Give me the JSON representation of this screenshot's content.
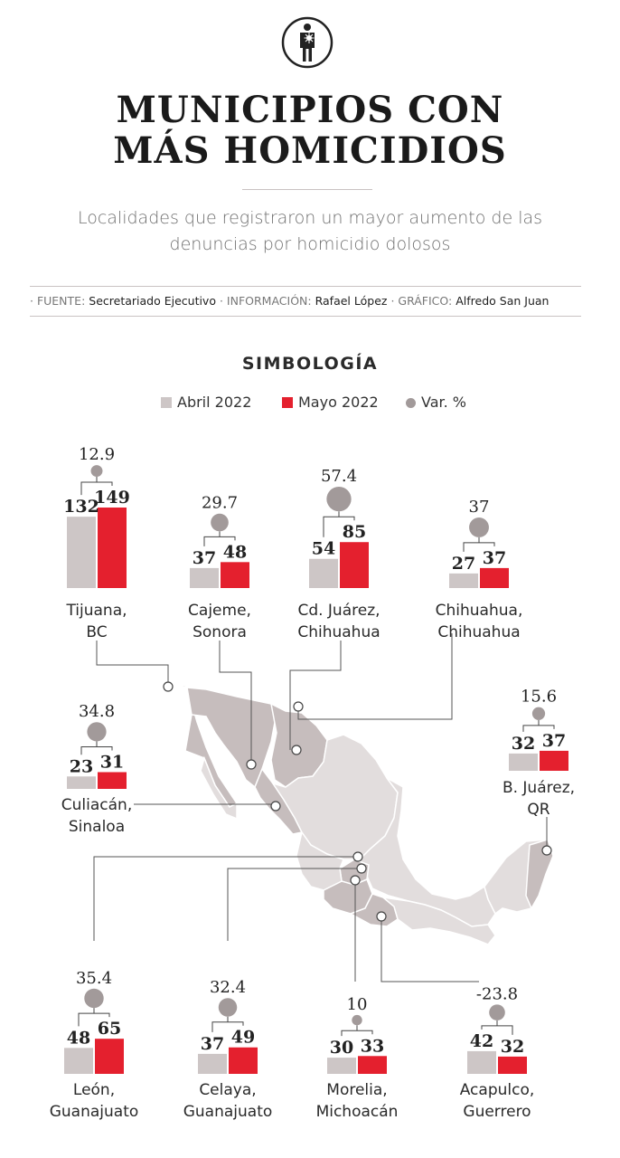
{
  "header": {
    "logo_icon": "person-with-wound-icon",
    "title_line1": "MUNICIPIOS CON",
    "title_line2": "MÁS HOMICIDIOS",
    "subtitle_line1": "Localidades que registraron un mayor aumento de las",
    "subtitle_line2": "denuncias por homicidio dolosos"
  },
  "credits": {
    "fuente_label": "· FUENTE:",
    "fuente_value": "Secretariado Ejecutivo",
    "informacion_label": "· INFORMACIÓN:",
    "informacion_value": "Rafael López",
    "grafico_label": "· GRÁFICO:",
    "grafico_value": "Alfredo San Juan"
  },
  "legend": {
    "title": "SIMBOLOGÍA",
    "abril": "Abril 2022",
    "mayo": "Mayo 2022",
    "var": "Var. %"
  },
  "colors": {
    "abril": "#cdc6c6",
    "mayo": "#e4202e",
    "var": "#a29a9a",
    "map_base": "#e2dddd",
    "map_highlight": "#c6bdbd",
    "map_border": "#ffffff"
  },
  "chart_data": {
    "type": "bar",
    "series": [
      {
        "name": "Abril 2022"
      },
      {
        "name": "Mayo 2022"
      }
    ],
    "municipios": [
      {
        "city": [
          "Tijuana,",
          "BC"
        ],
        "abril": 132,
        "mayo": 149,
        "var": "12.9"
      },
      {
        "city": [
          "Cajeme,",
          "Sonora"
        ],
        "abril": 37,
        "mayo": 48,
        "var": "29.7"
      },
      {
        "city": [
          "Cd. Juárez,",
          "Chihuahua"
        ],
        "abril": 54,
        "mayo": 85,
        "var": "57.4"
      },
      {
        "city": [
          "Chihuahua,",
          "Chihuahua"
        ],
        "abril": 27,
        "mayo": 37,
        "var": "37"
      },
      {
        "city": [
          "Culiacán,",
          "Sinaloa"
        ],
        "abril": 23,
        "mayo": 31,
        "var": "34.8"
      },
      {
        "city": [
          "B. Juárez,",
          "QR"
        ],
        "abril": 32,
        "mayo": 37,
        "var": "15.6"
      },
      {
        "city": [
          "León,",
          "Guanajuato"
        ],
        "abril": 48,
        "mayo": 65,
        "var": "35.4"
      },
      {
        "city": [
          "Celaya,",
          "Guanajuato"
        ],
        "abril": 37,
        "mayo": 49,
        "var": "32.4"
      },
      {
        "city": [
          "Morelia,",
          "Michoacán"
        ],
        "abril": 30,
        "mayo": 33,
        "var": "10"
      },
      {
        "city": [
          "Acapulco,",
          "Guerrero"
        ],
        "abril": 42,
        "mayo": 32,
        "var": "-23.8"
      }
    ]
  }
}
